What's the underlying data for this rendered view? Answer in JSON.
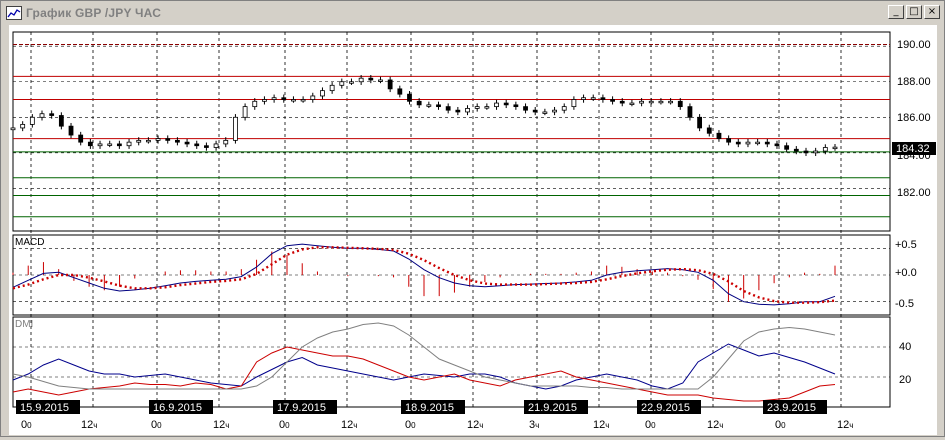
{
  "window": {
    "title": "График GBP /JPY  ЧАС",
    "minimize_label": "_",
    "maximize_label": "□",
    "close_label": "×"
  },
  "price_panel": {
    "current_price_label": "184.32",
    "y_ticks": [
      "190.00",
      "188.00",
      "186.00",
      "184.00",
      "182.00"
    ],
    "level_lines": [
      {
        "value": 190.1,
        "color": "#8b0000",
        "dashed": true
      },
      {
        "value": 188.3,
        "color": "#c00000",
        "dashed": false
      },
      {
        "value": 187.0,
        "color": "#c00000",
        "dashed": false
      },
      {
        "value": 184.8,
        "color": "#c00000",
        "dashed": false
      },
      {
        "value": 184.05,
        "color": "#006400",
        "dashed": false
      },
      {
        "value": 182.6,
        "color": "#006400",
        "dashed": false
      },
      {
        "value": 181.6,
        "color": "#006400",
        "dashed": false
      },
      {
        "value": 180.4,
        "color": "#006400",
        "dashed": false
      }
    ]
  },
  "macd_panel": {
    "label": "MACD",
    "y_ticks": [
      "+0.5",
      "+0.0",
      "-0.5"
    ]
  },
  "dmi_panel": {
    "label": "DMI",
    "y_ticks": [
      "40",
      "20"
    ]
  },
  "time_axis": {
    "date_labels": [
      "15.9.2015",
      "16.9.2015",
      "17.9.2015",
      "18.9.2015",
      "21.9.2015",
      "22.9.2015",
      "23.9.2015"
    ],
    "hour_labels": [
      {
        "big": "0",
        "small": "0"
      },
      {
        "big": "12",
        "small": "ч"
      },
      {
        "big": "0",
        "small": "0"
      },
      {
        "big": "12",
        "small": "ч"
      },
      {
        "big": "0",
        "small": "0"
      },
      {
        "big": "12",
        "small": "ч"
      },
      {
        "big": "0",
        "small": "0"
      },
      {
        "big": "12",
        "small": "ч"
      },
      {
        "big": "3",
        "small": "ч"
      },
      {
        "big": "12",
        "small": "ч"
      },
      {
        "big": "0",
        "small": "0"
      },
      {
        "big": "12",
        "small": "ч"
      },
      {
        "big": "0",
        "small": "0"
      },
      {
        "big": "12",
        "small": "ч"
      }
    ]
  },
  "colors": {
    "accent_red": "#cc0000",
    "macd_line": "#000080",
    "support_green": "#006400",
    "dmi_plus": "#00008b",
    "dmi_minus": "#cc0000",
    "adx": "#808080"
  },
  "chart_data": [
    {
      "type": "candlestick",
      "title": "График GBP /JPY  ЧАС",
      "ylim": [
        179.6,
        190.8
      ],
      "x_dates": [
        "15.9.2015",
        "16.9.2015",
        "17.9.2015",
        "18.9.2015",
        "21.9.2015",
        "22.9.2015",
        "23.9.2015"
      ],
      "close_trajectory": [
        185.4,
        185.6,
        186.0,
        186.2,
        186.1,
        185.5,
        185.0,
        184.6,
        184.4,
        184.5,
        184.5,
        184.4,
        184.6,
        184.7,
        184.7,
        184.8,
        184.7,
        184.6,
        184.5,
        184.4,
        184.3,
        184.5,
        184.7,
        186.0,
        186.6,
        186.9,
        187.0,
        187.1,
        187.0,
        187.0,
        187.0,
        187.2,
        187.5,
        187.8,
        188.0,
        188.0,
        188.2,
        188.1,
        188.1,
        187.6,
        187.3,
        186.9,
        186.7,
        186.7,
        186.6,
        186.4,
        186.3,
        186.5,
        186.6,
        186.6,
        186.8,
        186.7,
        186.6,
        186.4,
        186.3,
        186.3,
        186.4,
        186.6,
        187.0,
        187.1,
        187.1,
        187.0,
        186.9,
        186.8,
        186.8,
        186.9,
        186.9,
        186.9,
        186.9,
        186.6,
        186.0,
        185.4,
        185.1,
        184.8,
        184.6,
        184.5,
        184.6,
        184.6,
        184.5,
        184.4,
        184.2,
        184.1,
        184.0,
        184.1,
        184.3,
        184.32
      ],
      "current_value": 184.32
    },
    {
      "type": "line",
      "title": "MACD",
      "ylim": [
        -0.75,
        0.75
      ],
      "series": [
        {
          "values": [
            -0.23,
            -0.1,
            0.03,
            0.05,
            -0.05,
            -0.15,
            -0.25,
            -0.3,
            -0.28,
            -0.25,
            -0.2,
            -0.15,
            -0.12,
            -0.1,
            -0.08,
            -0.03,
            0.15,
            0.4,
            0.55,
            0.58,
            0.55,
            0.52,
            0.5,
            0.5,
            0.48,
            0.45,
            0.3,
            0.1,
            -0.05,
            -0.15,
            -0.2,
            -0.22,
            -0.2,
            -0.18,
            -0.17,
            -0.16,
            -0.15,
            -0.13,
            -0.1,
            0.0,
            0.05,
            0.08,
            0.1,
            0.12,
            0.1,
            0.05,
            -0.1,
            -0.35,
            -0.5,
            -0.55,
            -0.56,
            -0.54,
            -0.5,
            -0.5,
            -0.4
          ]
        },
        {
          "values": [
            -0.25,
            -0.18,
            -0.08,
            0.0,
            0.0,
            -0.05,
            -0.12,
            -0.2,
            -0.25,
            -0.25,
            -0.23,
            -0.19,
            -0.16,
            -0.13,
            -0.11,
            -0.08,
            0.02,
            0.2,
            0.38,
            0.48,
            0.52,
            0.52,
            0.51,
            0.5,
            0.49,
            0.47,
            0.4,
            0.28,
            0.13,
            0.0,
            -0.1,
            -0.16,
            -0.18,
            -0.18,
            -0.18,
            -0.17,
            -0.16,
            -0.15,
            -0.13,
            -0.08,
            -0.02,
            0.03,
            0.07,
            0.1,
            0.11,
            0.09,
            0.02,
            -0.12,
            -0.3,
            -0.42,
            -0.49,
            -0.52,
            -0.52,
            -0.51,
            -0.48
          ]
        }
      ]
    },
    {
      "type": "line",
      "title": "DMI",
      "ylim": [
        0,
        60
      ],
      "series": [
        {
          "values": [
            18,
            22,
            28,
            32,
            28,
            24,
            22,
            22,
            20,
            21,
            22,
            20,
            18,
            16,
            15,
            14,
            20,
            25,
            30,
            33,
            28,
            26,
            24,
            22,
            20,
            18,
            20,
            22,
            21,
            20,
            22,
            22,
            20,
            16,
            14,
            12,
            14,
            18,
            20,
            22,
            20,
            18,
            14,
            12,
            16,
            30,
            36,
            42,
            38,
            34,
            36,
            33,
            30,
            26,
            22
          ]
        },
        {
          "values": [
            10,
            12,
            10,
            8,
            10,
            12,
            13,
            14,
            16,
            15,
            15,
            14,
            16,
            15,
            12,
            14,
            30,
            36,
            40,
            38,
            36,
            34,
            34,
            32,
            28,
            24,
            20,
            18,
            20,
            22,
            18,
            16,
            14,
            18,
            20,
            22,
            24,
            20,
            18,
            16,
            14,
            12,
            10,
            8,
            8,
            8,
            6,
            5,
            4,
            4,
            5,
            6,
            10,
            14,
            15
          ]
        },
        {
          "values": [
            22,
            20,
            17,
            14,
            13,
            12,
            12,
            12,
            12,
            12,
            12,
            12,
            12,
            12,
            12,
            12,
            14,
            20,
            30,
            40,
            46,
            50,
            52,
            55,
            56,
            54,
            48,
            40,
            32,
            28,
            24,
            20,
            18,
            16,
            14,
            14,
            14,
            14,
            13,
            13,
            12,
            12,
            12,
            12,
            12,
            12,
            20,
            32,
            44,
            50,
            52,
            53,
            52,
            50,
            48
          ]
        }
      ]
    }
  ]
}
